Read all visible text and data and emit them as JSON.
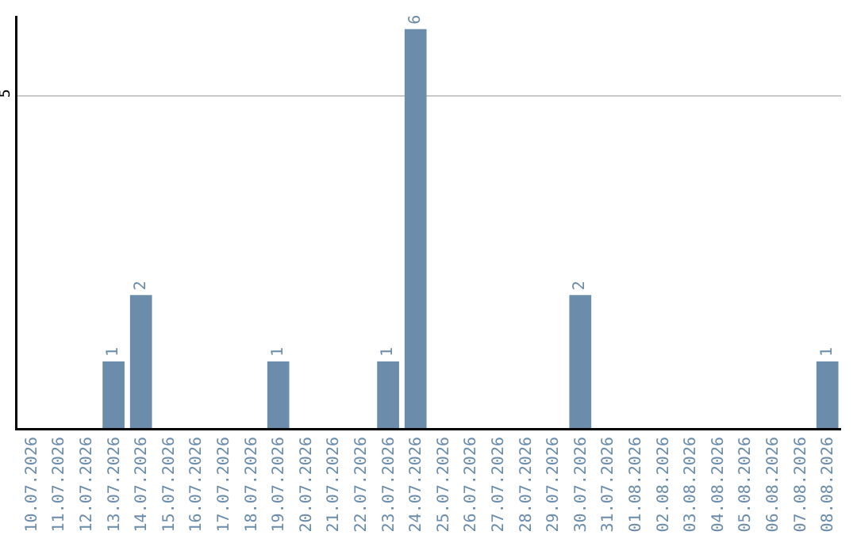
{
  "chart_data": {
    "type": "bar",
    "categories": [
      "10.07.2026",
      "11.07.2026",
      "12.07.2026",
      "13.07.2026",
      "14.07.2026",
      "15.07.2026",
      "16.07.2026",
      "17.07.2026",
      "18.07.2026",
      "19.07.2026",
      "20.07.2026",
      "21.07.2026",
      "22.07.2026",
      "23.07.2026",
      "24.07.2026",
      "25.07.2026",
      "26.07.2026",
      "27.07.2026",
      "28.07.2026",
      "29.07.2026",
      "30.07.2026",
      "31.07.2026",
      "01.08.2026",
      "02.08.2026",
      "03.08.2026",
      "04.08.2026",
      "05.08.2026",
      "06.08.2026",
      "07.08.2026",
      "08.08.2026"
    ],
    "values": [
      0,
      0,
      0,
      1,
      2,
      0,
      0,
      0,
      0,
      1,
      0,
      0,
      0,
      1,
      6,
      0,
      0,
      0,
      0,
      0,
      2,
      0,
      0,
      0,
      0,
      0,
      0,
      0,
      0,
      1
    ],
    "value_labels": [
      null,
      null,
      null,
      "1",
      "2",
      null,
      null,
      null,
      null,
      "1",
      null,
      null,
      null,
      "1",
      "6",
      null,
      null,
      null,
      null,
      null,
      "2",
      null,
      null,
      null,
      null,
      null,
      null,
      null,
      null,
      "1"
    ],
    "color": "#6b8cab",
    "ylim": [
      0,
      6.2
    ],
    "yticks": [
      5
    ],
    "grid": "y"
  }
}
